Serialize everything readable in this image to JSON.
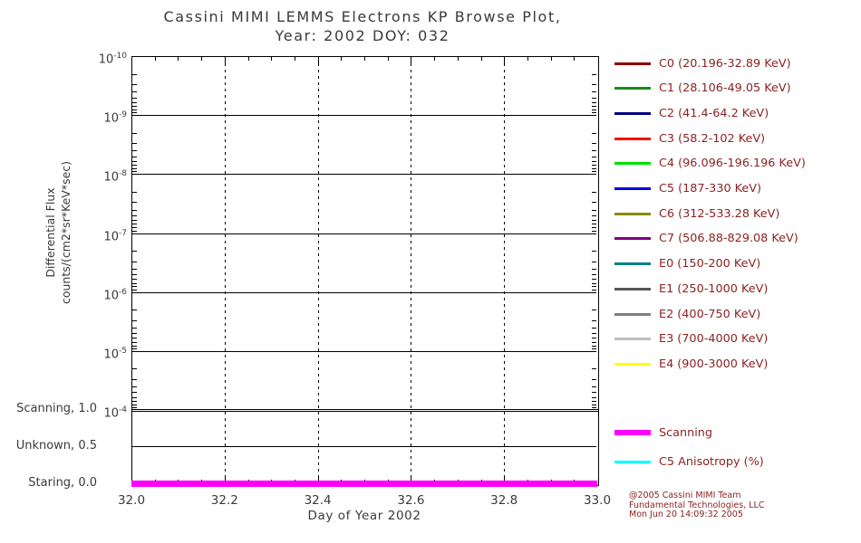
{
  "title": {
    "line1": "Cassini MIMI LEMMS Electrons KP Browse Plot,",
    "line2": "Year: 2002 DOY: 032"
  },
  "axes": {
    "y_label_line1": "Differential Flux",
    "y_label_line2": "counts/(cm2*sr*KeV*sec)",
    "y_tick_base": "10",
    "y_tick_exponents": [
      "-10",
      "-9",
      "-8",
      "-7",
      "-6",
      "-5",
      "-4"
    ],
    "status_ticks": [
      "Scanning, 1.0",
      "Unknown, 0.5",
      "Staring, 0.0"
    ],
    "x_ticks": [
      "32.0",
      "32.2",
      "32.4",
      "32.6",
      "32.8",
      "33.0"
    ],
    "x_label": "Day of Year 2002"
  },
  "legend": {
    "entries": [
      {
        "label": "C0 (20.196-32.89 KeV)",
        "color": "#8B0000"
      },
      {
        "label": "C1 (28.106-49.05 KeV)",
        "color": "#1E8B1E"
      },
      {
        "label": "C2 (41.4-64.2 KeV)",
        "color": "#000080"
      },
      {
        "label": "C3 (58.2-102 KeV)",
        "color": "#FF0000"
      },
      {
        "label": "C4 (96.096-196.196 KeV)",
        "color": "#00E000"
      },
      {
        "label": "C5 (187-330 KeV)",
        "color": "#0000EE"
      },
      {
        "label": "C6 (312-533.28 KeV)",
        "color": "#8B8B00"
      },
      {
        "label": "C7 (506.88-829.08 KeV)",
        "color": "#800080"
      },
      {
        "label": "E0 (150-200 KeV)",
        "color": "#008080"
      },
      {
        "label": "E1 (250-1000 KeV)",
        "color": "#555555"
      },
      {
        "label": "E2 (400-750 KeV)",
        "color": "#808080"
      },
      {
        "label": "E3 (700-4000 KeV)",
        "color": "#BEBEBE"
      },
      {
        "label": "E4 (900-3000 KeV)",
        "color": "#FFFF00"
      }
    ]
  },
  "status_legend": {
    "entries": [
      {
        "label": "Scanning",
        "color": "#FF00FF"
      },
      {
        "label": "C5 Anisotropy (%)",
        "color": "#00FFFF"
      }
    ]
  },
  "credits": {
    "line1": "@2005 Cassini MIMI Team",
    "line2": "Fundamental Technologies, LLC",
    "line3": "Mon Jun 20 14:09:32 2005"
  },
  "colors": {
    "axis_text": "#3a3a3a",
    "legend_text": "#8B2222",
    "grid": "#000000",
    "scanning_line": "#FF00FF"
  },
  "chart_data": {
    "type": "line",
    "title": "Cassini MIMI LEMMS Electrons KP Browse Plot, Year: 2002 DOY: 032",
    "xlabel": "Day of Year 2002",
    "xlim": [
      32.0,
      33.0
    ],
    "xticks": [
      32.0,
      32.2,
      32.4,
      32.6,
      32.8,
      33.0
    ],
    "grid": true,
    "legend_position": "right",
    "panels": [
      {
        "name": "differential_flux",
        "ylabel": "Differential Flux counts/(cm2*sr*KeV*sec)",
        "yscale": "log",
        "ytick_labels_top_to_bottom": [
          "10^-10",
          "10^-9",
          "10^-8",
          "10^-7",
          "10^-6",
          "10^-5",
          "10^-4"
        ],
        "channels": [
          "C0",
          "C1",
          "C2",
          "C3",
          "C4",
          "C5",
          "C6",
          "C7",
          "E0",
          "E1",
          "E2",
          "E3",
          "E4"
        ],
        "series": []
      },
      {
        "name": "pointing_status",
        "ylim": [
          0.0,
          1.0
        ],
        "ytick_labels_top_to_bottom": [
          "Scanning, 1.0",
          "Unknown, 0.5",
          "Staring, 0.0"
        ],
        "series": [
          {
            "name": "Scanning",
            "color": "#FF00FF",
            "x": [
              32.0,
              33.0
            ],
            "y": [
              0.0,
              0.0
            ]
          }
        ]
      }
    ]
  }
}
